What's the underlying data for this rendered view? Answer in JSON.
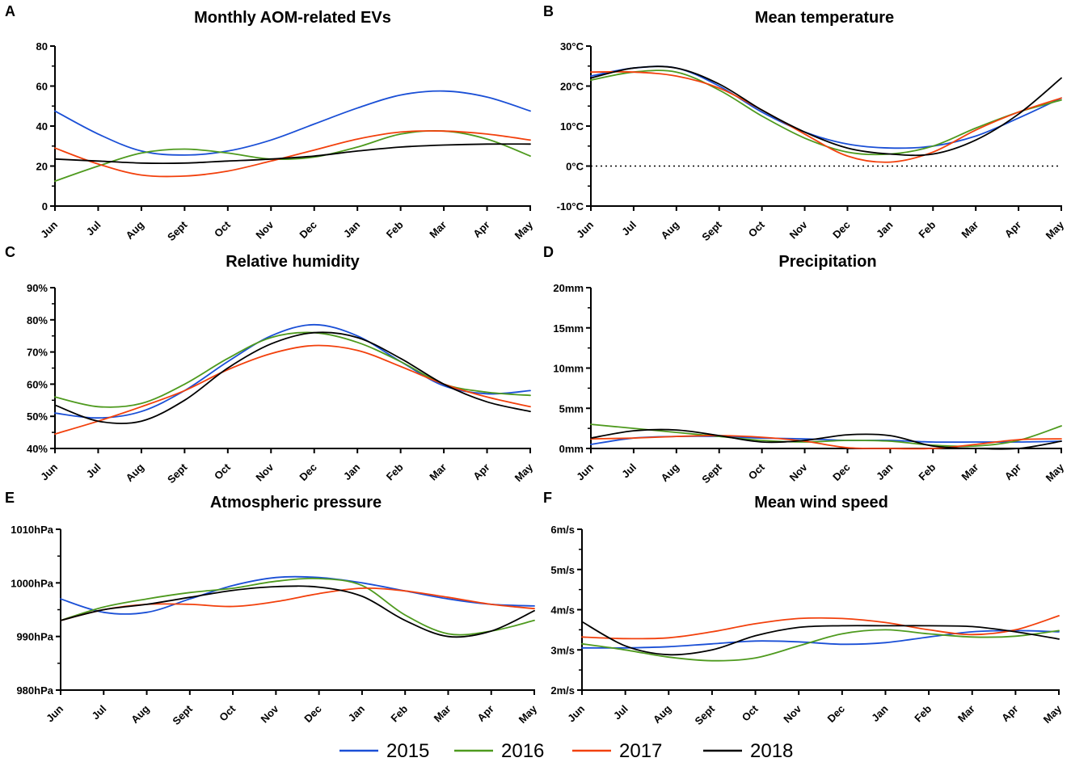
{
  "colors": {
    "2015": "#1a4fd6",
    "2016": "#4e9a1e",
    "2017": "#f2400c",
    "2018": "#000000"
  },
  "months": [
    "Jun",
    "Jul",
    "Aug",
    "Sept",
    "Oct",
    "Nov",
    "Dec",
    "Jan",
    "Feb",
    "Mar",
    "Apr",
    "May"
  ],
  "legend": [
    {
      "label": "2015",
      "color": "#1a4fd6"
    },
    {
      "label": "2016",
      "color": "#4e9a1e"
    },
    {
      "label": "2017",
      "color": "#f2400c"
    },
    {
      "label": "2018",
      "color": "#000000"
    }
  ],
  "chart_data": [
    {
      "letter": "A",
      "title": "Monthly AOM-related EVs",
      "type": "line",
      "ylim": [
        0,
        80
      ],
      "yticks": [
        0,
        20,
        40,
        60,
        80
      ],
      "ytick_labels": [
        "0",
        "20",
        "40",
        "60",
        "80"
      ],
      "series": [
        {
          "name": "2015",
          "values": [
            47.5,
            36,
            27.5,
            25.5,
            27.5,
            33,
            41,
            49,
            55.5,
            57.5,
            54.5,
            47.5
          ]
        },
        {
          "name": "2016",
          "values": [
            12.5,
            20,
            26.5,
            28.5,
            26.5,
            23.5,
            24.5,
            29.5,
            36,
            37.5,
            33.5,
            25
          ]
        },
        {
          "name": "2017",
          "values": [
            29,
            21,
            15.5,
            15,
            17.5,
            22.5,
            28,
            33.5,
            37,
            37.5,
            36,
            33
          ]
        },
        {
          "name": "2018",
          "values": [
            23.5,
            22.5,
            21.5,
            21.5,
            22.5,
            23.5,
            25,
            27.5,
            29.5,
            30.5,
            31,
            31
          ]
        }
      ]
    },
    {
      "letter": "B",
      "title": "Mean temperature",
      "type": "line",
      "ylim": [
        -10,
        30
      ],
      "yticks": [
        -10,
        0,
        10,
        20,
        30
      ],
      "ytick_labels": [
        "-10°C",
        "0°C",
        "10°C",
        "20°C",
        "30°C"
      ],
      "reference_line": 0,
      "series": [
        {
          "name": "2015",
          "values": [
            22.5,
            24.5,
            24.5,
            20,
            13.5,
            8.5,
            5.5,
            4.5,
            5,
            7.5,
            12,
            17
          ]
        },
        {
          "name": "2016",
          "values": [
            21.5,
            23.5,
            23.5,
            19,
            12.5,
            7,
            3.5,
            3,
            5,
            9.5,
            13.5,
            16.5
          ]
        },
        {
          "name": "2017",
          "values": [
            23.5,
            23.5,
            22.5,
            19.5,
            14,
            8,
            2.5,
            1,
            3.5,
            9,
            13.5,
            17
          ]
        },
        {
          "name": "2018",
          "values": [
            22,
            24.5,
            24.5,
            20.5,
            14,
            8.5,
            4.5,
            3,
            3,
            6.5,
            13,
            22
          ]
        }
      ]
    },
    {
      "letter": "C",
      "title": "Relative humidity",
      "type": "line",
      "ylim": [
        40,
        90
      ],
      "yticks": [
        40,
        50,
        60,
        70,
        80,
        90
      ],
      "ytick_labels": [
        "40%",
        "50%",
        "60%",
        "70%",
        "80%",
        "90%"
      ],
      "series": [
        {
          "name": "2015",
          "values": [
            51,
            49.5,
            51.5,
            58,
            67,
            75,
            78.5,
            75,
            67,
            59.5,
            57,
            58
          ]
        },
        {
          "name": "2016",
          "values": [
            56,
            53,
            54,
            60,
            68,
            74.5,
            76,
            73,
            67,
            60,
            57.5,
            56.5
          ]
        },
        {
          "name": "2017",
          "values": [
            44.5,
            48.5,
            53,
            58,
            64.5,
            69.5,
            72,
            70.5,
            65.5,
            60,
            56,
            53
          ]
        },
        {
          "name": "2018",
          "values": [
            53.5,
            48.5,
            48.5,
            55,
            65,
            72.5,
            76,
            74.5,
            68,
            60,
            54.5,
            51.5
          ]
        }
      ]
    },
    {
      "letter": "D",
      "title": "Precipitation",
      "type": "line",
      "ylim": [
        0,
        20
      ],
      "yticks": [
        0,
        5,
        10,
        15,
        20
      ],
      "ytick_labels": [
        "0mm",
        "5mm",
        "10mm",
        "15mm",
        "20mm"
      ],
      "series": [
        {
          "name": "2015",
          "values": [
            0.5,
            1.3,
            1.5,
            1.5,
            1.3,
            1.2,
            1,
            1,
            0.8,
            0.8,
            0.8,
            0.9
          ]
        },
        {
          "name": "2016",
          "values": [
            3,
            2.5,
            2,
            1.5,
            1,
            0.8,
            1,
            0.9,
            0.4,
            0.3,
            1,
            2.8
          ]
        },
        {
          "name": "2017",
          "values": [
            1.2,
            1.3,
            1.5,
            1.6,
            1.4,
            0.9,
            0.1,
            0,
            0,
            0.5,
            1.1,
            1.2
          ]
        },
        {
          "name": "2018",
          "values": [
            1.3,
            2.2,
            2.3,
            1.6,
            0.8,
            1,
            1.7,
            1.6,
            0.3,
            0,
            0,
            0.9
          ]
        }
      ]
    },
    {
      "letter": "E",
      "title": "Atmospheric pressure",
      "type": "line",
      "ylim": [
        980,
        1010
      ],
      "yticks": [
        980,
        990,
        1000,
        1010
      ],
      "ytick_labels": [
        "980hPa",
        "990hPa",
        "1000hPa",
        "1010hPa"
      ],
      "series": [
        {
          "name": "2015",
          "values": [
            997,
            994.5,
            994.5,
            997,
            999.5,
            1001,
            1001,
            1000,
            998.5,
            997,
            996,
            995.7
          ]
        },
        {
          "name": "2016",
          "values": [
            993,
            995.5,
            997,
            998.2,
            999,
            1000.3,
            1000.8,
            999.5,
            994,
            990.5,
            991,
            993
          ]
        },
        {
          "name": "2017",
          "values": [
            993,
            995,
            996,
            996,
            995.6,
            996.5,
            998,
            999,
            998.5,
            997.3,
            996,
            995.2
          ]
        },
        {
          "name": "2018",
          "values": [
            993,
            995,
            996,
            997.3,
            998.6,
            999.3,
            999.2,
            997.5,
            993,
            990,
            991,
            994.8
          ]
        }
      ]
    },
    {
      "letter": "F",
      "title": "Mean wind speed",
      "type": "line",
      "ylim": [
        2,
        6
      ],
      "yticks": [
        2,
        3,
        4,
        5,
        6
      ],
      "ytick_labels": [
        "2m/s",
        "3m/s",
        "4m/s",
        "5m/s",
        "6m/s"
      ],
      "series": [
        {
          "name": "2015",
          "values": [
            3.05,
            3.05,
            3.08,
            3.15,
            3.22,
            3.2,
            3.14,
            3.18,
            3.32,
            3.45,
            3.48,
            3.45
          ]
        },
        {
          "name": "2016",
          "values": [
            3.15,
            3,
            2.82,
            2.73,
            2.8,
            3.1,
            3.4,
            3.5,
            3.4,
            3.32,
            3.34,
            3.48
          ]
        },
        {
          "name": "2017",
          "values": [
            3.32,
            3.28,
            3.3,
            3.45,
            3.65,
            3.78,
            3.78,
            3.68,
            3.5,
            3.38,
            3.5,
            3.85
          ]
        },
        {
          "name": "2018",
          "values": [
            3.7,
            3.1,
            2.88,
            3,
            3.35,
            3.56,
            3.6,
            3.6,
            3.6,
            3.58,
            3.45,
            3.27
          ]
        }
      ]
    }
  ]
}
